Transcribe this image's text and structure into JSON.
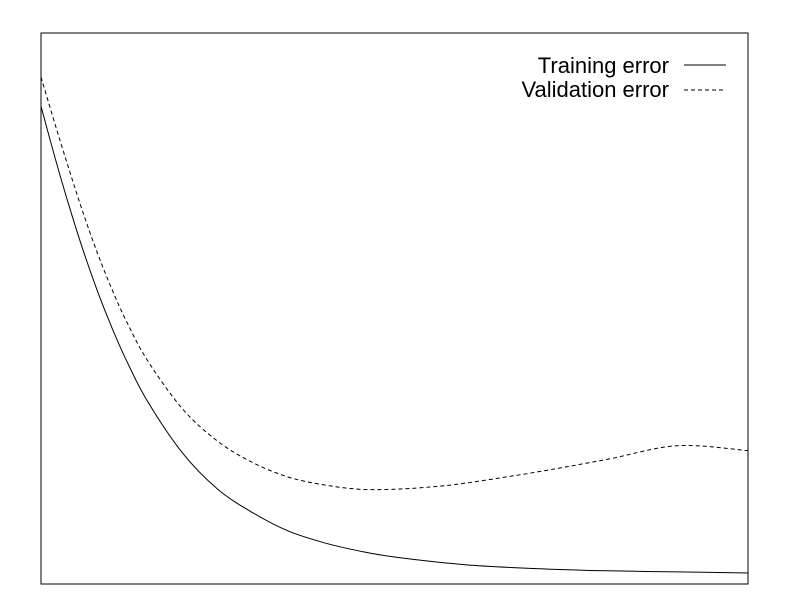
{
  "chart_data": {
    "type": "line",
    "title": "",
    "xlabel": "",
    "ylabel": "",
    "x_ticks": [],
    "y_ticks": [],
    "xlim": [
      0,
      100
    ],
    "ylim": [
      0,
      100
    ],
    "grid": false,
    "legend_position": "top-right",
    "series": [
      {
        "name": "Training error",
        "style": "solid",
        "color": "#000000",
        "x": [
          0,
          2,
          4,
          6,
          8,
          10,
          12,
          15,
          20,
          25,
          30,
          35,
          40,
          45,
          50,
          60,
          70,
          80,
          90,
          100
        ],
        "y": [
          86.7,
          77.3,
          68.5,
          60.4,
          53.1,
          46.6,
          40.8,
          33.3,
          23.8,
          17.2,
          12.9,
          9.6,
          7.5,
          6.0,
          4.9,
          3.5,
          2.8,
          2.4,
          2.2,
          2.0
        ]
      },
      {
        "name": "Validation error",
        "style": "dashed",
        "color": "#000000",
        "x": [
          0,
          2,
          4,
          6,
          8,
          10,
          12,
          15,
          20,
          25,
          30,
          35,
          40,
          45,
          50,
          55,
          60,
          70,
          80,
          90,
          100
        ],
        "y": [
          92.0,
          83.4,
          75.1,
          67.2,
          60.0,
          53.6,
          47.9,
          40.7,
          31.8,
          25.9,
          22.0,
          19.4,
          18.0,
          17.2,
          17.2,
          17.6,
          18.3,
          20.3,
          22.6,
          25.1,
          24.2
        ]
      }
    ]
  }
}
